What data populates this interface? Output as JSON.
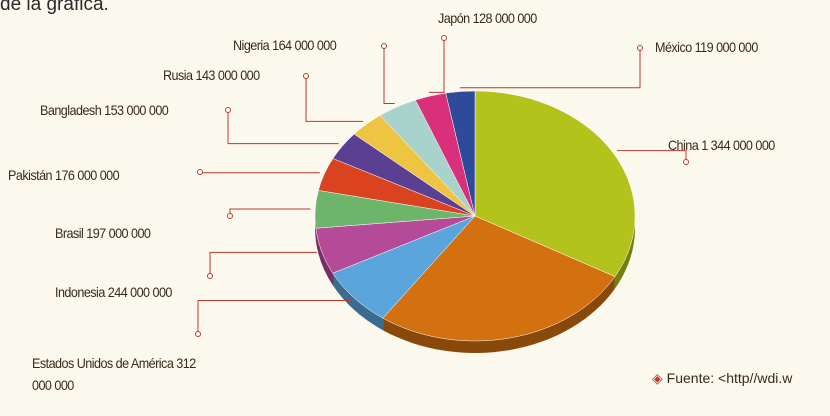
{
  "chart_data": {
    "type": "pie",
    "intro_text": "de la gráfica.",
    "source": "Fuente: <http//wdi.w",
    "categories": [
      "China",
      null,
      "Estados Unidos de América",
      "Indonesia",
      "Brasil",
      "Pakistán",
      "Bangladesh",
      "Rusia",
      "Nigeria",
      "Japón",
      "México"
    ],
    "values": [
      1344000000,
      1086000000,
      312000000,
      244000000,
      197000000,
      176000000,
      153000000,
      143000000,
      164000000,
      128000000,
      119000000
    ],
    "value_labels": [
      "1 344 000 000",
      null,
      "312 000 000",
      "244 000 000",
      "197 000 000",
      "176 000 000",
      "153 000 000",
      "143 000 000",
      "164 000 000",
      "128 000 000",
      "119 000 000"
    ],
    "colors": [
      "#b3c31c",
      "#d3700f",
      "#5aa6dc",
      "#b54a98",
      "#6cb56a",
      "#d9431f",
      "#5a3f93",
      "#eec443",
      "#a8d3cd",
      "#d8307a",
      "#2e4a9a"
    ]
  }
}
